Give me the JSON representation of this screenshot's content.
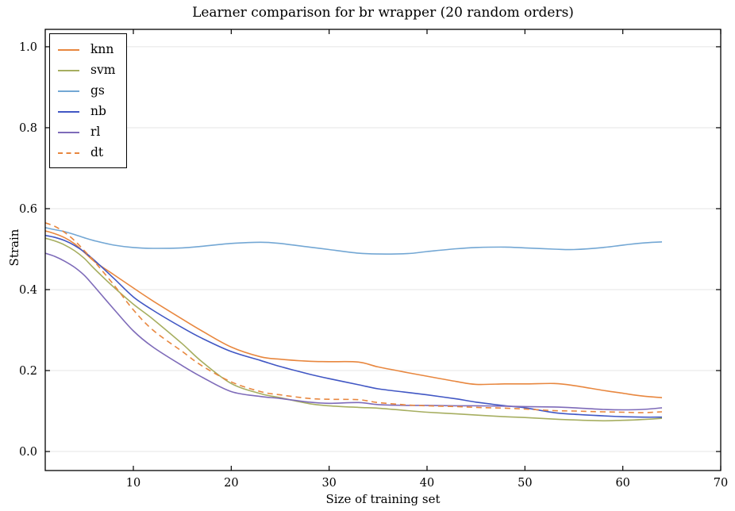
{
  "title": "Learner comparison for br wrapper (20 random orders)",
  "xlabel": "Size of training set",
  "ylabel": "Strain",
  "chart_data": {
    "type": "line",
    "title": "Learner comparison for br wrapper (20 random orders)",
    "xlabel": "Size of training set",
    "ylabel": "Strain",
    "xlim": [
      1,
      70
    ],
    "ylim": [
      -0.047,
      1.043
    ],
    "x_ticks": [
      10,
      20,
      30,
      40,
      50,
      60,
      70
    ],
    "y_ticks": [
      0.0,
      0.2,
      0.4,
      0.6,
      0.8,
      1.0
    ],
    "y_tick_labels": [
      "0.0",
      "0.2",
      "0.4",
      "0.6",
      "0.8",
      "1.0"
    ],
    "grid": "horizontal",
    "grid_color": "#e5e5e5",
    "axis_color": "#000000",
    "legend_position": "upper-left",
    "x": [
      1,
      2,
      3,
      4,
      5,
      6,
      8,
      10,
      12,
      15,
      17,
      20,
      23,
      25,
      28,
      30,
      33,
      35,
      38,
      40,
      43,
      45,
      48,
      50,
      53,
      55,
      58,
      60,
      62,
      64
    ],
    "series": [
      {
        "name": "knn",
        "color": "#E8873F",
        "style": "solid",
        "values": [
          0.545,
          0.538,
          0.528,
          0.513,
          0.492,
          0.47,
          0.437,
          0.404,
          0.372,
          0.327,
          0.298,
          0.258,
          0.234,
          0.228,
          0.223,
          0.222,
          0.221,
          0.209,
          0.195,
          0.186,
          0.173,
          0.166,
          0.167,
          0.167,
          0.168,
          0.163,
          0.151,
          0.144,
          0.137,
          0.133
        ]
      },
      {
        "name": "svm",
        "color": "#A6AE60",
        "style": "solid",
        "values": [
          0.527,
          0.52,
          0.51,
          0.496,
          0.477,
          0.452,
          0.406,
          0.364,
          0.327,
          0.266,
          0.222,
          0.168,
          0.143,
          0.133,
          0.118,
          0.113,
          0.109,
          0.107,
          0.101,
          0.097,
          0.093,
          0.09,
          0.086,
          0.084,
          0.08,
          0.078,
          0.076,
          0.077,
          0.079,
          0.082
        ]
      },
      {
        "name": "gs",
        "color": "#73A7D4",
        "style": "solid",
        "values": [
          0.553,
          0.548,
          0.543,
          0.536,
          0.528,
          0.521,
          0.51,
          0.504,
          0.502,
          0.503,
          0.507,
          0.514,
          0.517,
          0.514,
          0.505,
          0.499,
          0.49,
          0.488,
          0.489,
          0.494,
          0.501,
          0.504,
          0.505,
          0.503,
          0.5,
          0.499,
          0.504,
          0.51,
          0.515,
          0.518
        ]
      },
      {
        "name": "nb",
        "color": "#4157C4",
        "style": "solid",
        "values": [
          0.534,
          0.529,
          0.521,
          0.509,
          0.493,
          0.473,
          0.428,
          0.382,
          0.349,
          0.306,
          0.28,
          0.247,
          0.225,
          0.21,
          0.191,
          0.18,
          0.165,
          0.155,
          0.146,
          0.14,
          0.13,
          0.122,
          0.113,
          0.108,
          0.096,
          0.092,
          0.088,
          0.086,
          0.085,
          0.085
        ]
      },
      {
        "name": "rl",
        "color": "#7E6BB9",
        "style": "solid",
        "values": [
          0.49,
          0.482,
          0.47,
          0.455,
          0.435,
          0.408,
          0.352,
          0.298,
          0.258,
          0.212,
          0.184,
          0.148,
          0.136,
          0.131,
          0.122,
          0.119,
          0.121,
          0.116,
          0.114,
          0.114,
          0.113,
          0.113,
          0.112,
          0.111,
          0.11,
          0.108,
          0.104,
          0.103,
          0.104,
          0.108
        ]
      },
      {
        "name": "dt",
        "color": "#E8873F",
        "style": "dashed",
        "values": [
          0.565,
          0.556,
          0.541,
          0.521,
          0.496,
          0.47,
          0.412,
          0.35,
          0.3,
          0.247,
          0.212,
          0.172,
          0.148,
          0.14,
          0.131,
          0.129,
          0.128,
          0.121,
          0.115,
          0.113,
          0.111,
          0.109,
          0.107,
          0.105,
          0.101,
          0.1,
          0.098,
          0.097,
          0.096,
          0.098
        ]
      }
    ]
  }
}
